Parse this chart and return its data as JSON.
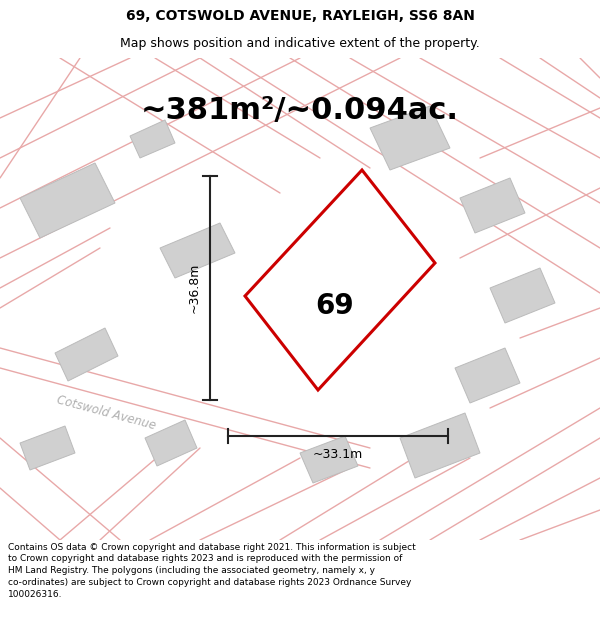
{
  "title_line1": "69, COTSWOLD AVENUE, RAYLEIGH, SS6 8AN",
  "title_line2": "Map shows position and indicative extent of the property.",
  "area_text": "~381m²/~0.094ac.",
  "label_69": "69",
  "dim_vertical": "~36.8m",
  "dim_horizontal": "~33.1m",
  "road_label": "Cotswold Avenue",
  "footer_text": "Contains OS data © Crown copyright and database right 2021. This information is subject to Crown copyright and database rights 2023 and is reproduced with the permission of HM Land Registry. The polygons (including the associated geometry, namely x, y co-ordinates) are subject to Crown copyright and database rights 2023 Ordnance Survey 100026316.",
  "bg_color": "#ffffff",
  "map_bg": "#eeecec",
  "plot_outline_color": "#cc0000",
  "road_line_color": "#e8a8a8",
  "building_fill": "#d0d0d0",
  "building_stroke": "#bbbbbb",
  "dim_line_color": "#222222",
  "title_area_bg": "#ffffff",
  "footer_bg": "#ffffff",
  "title_fontsize": 10,
  "subtitle_fontsize": 9,
  "area_fontsize": 22,
  "label_fontsize": 20,
  "dim_fontsize": 9,
  "road_label_fontsize": 8.5,
  "footer_fontsize": 6.5
}
